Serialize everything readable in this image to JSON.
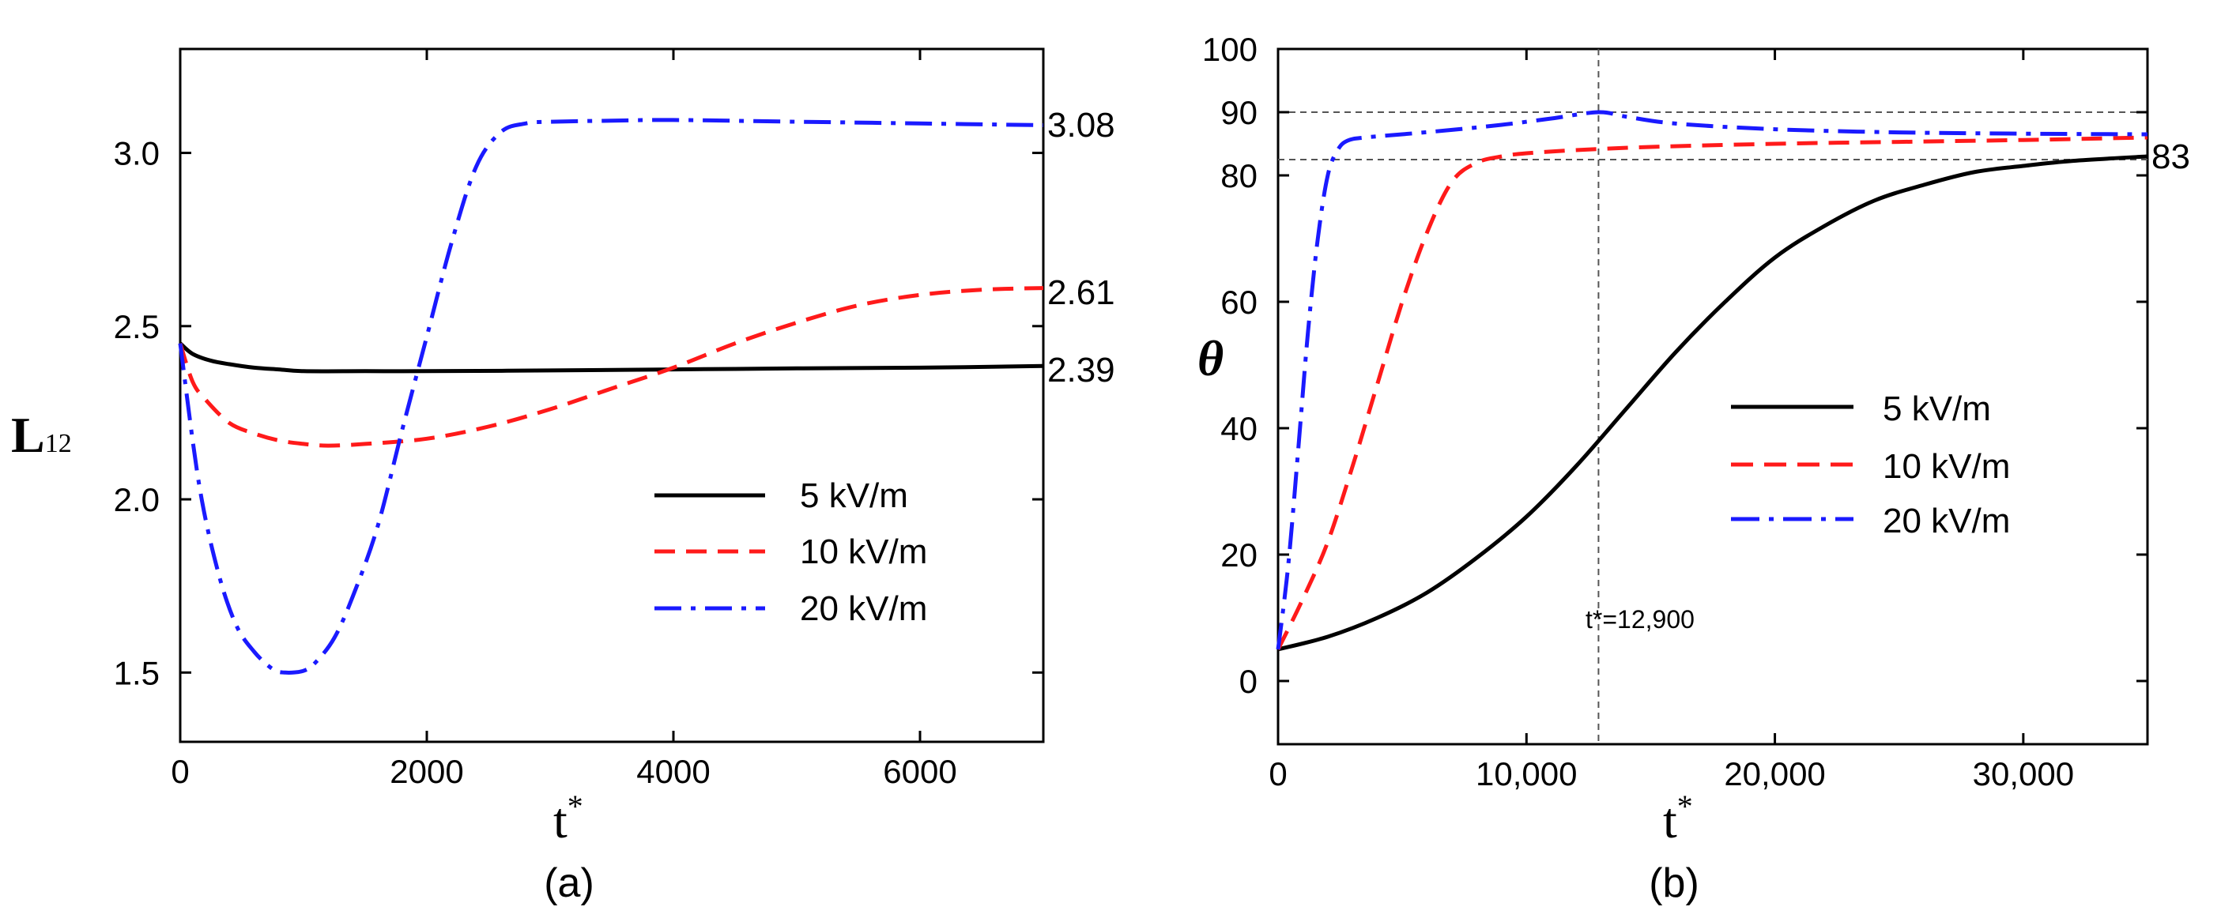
{
  "chart_data": [
    {
      "type": "line",
      "panel_label": "(a)",
      "xlabel": "t",
      "xlabel_sup": "*",
      "ylabel": "L",
      "ylabel_sub": "12",
      "xlim": [
        0,
        7000
      ],
      "ylim": [
        1.3,
        3.3
      ],
      "xticks": [
        0,
        2000,
        4000,
        6000
      ],
      "xtick_labels": [
        "0",
        "2000",
        "4000",
        "6000"
      ],
      "yticks": [
        1.5,
        2.0,
        2.5,
        3.0
      ],
      "ytick_labels": [
        "1.5",
        "2.0",
        "2.5",
        "3.0"
      ],
      "legend_position": "lower-right",
      "series": [
        {
          "name": "5 kV/m",
          "color": "#000000",
          "style": "solid",
          "x": [
            0,
            100,
            250,
            400,
            600,
            800,
            1000,
            1500,
            2000,
            3000,
            4000,
            5000,
            6000,
            7000
          ],
          "y": [
            2.45,
            2.42,
            2.4,
            2.39,
            2.38,
            2.375,
            2.37,
            2.37,
            2.37,
            2.372,
            2.375,
            2.378,
            2.38,
            2.385
          ],
          "end_label": "2.39"
        },
        {
          "name": "10 kV/m",
          "color": "#ff1a1a",
          "style": "dashed",
          "x": [
            0,
            100,
            200,
            400,
            600,
            800,
            1000,
            1200,
            1500,
            2000,
            2500,
            3000,
            3500,
            4000,
            4500,
            5000,
            5500,
            6000,
            6500,
            7000
          ],
          "y": [
            2.45,
            2.34,
            2.29,
            2.22,
            2.19,
            2.17,
            2.16,
            2.155,
            2.16,
            2.175,
            2.21,
            2.26,
            2.32,
            2.38,
            2.45,
            2.51,
            2.56,
            2.59,
            2.605,
            2.61
          ],
          "end_label": "2.61"
        },
        {
          "name": "20 kV/m",
          "color": "#1a1aff",
          "style": "dashdot",
          "x": [
            0,
            150,
            300,
            450,
            600,
            750,
            850,
            1000,
            1100,
            1250,
            1400,
            1600,
            1800,
            2000,
            2200,
            2400,
            2600,
            2800,
            3000,
            3500,
            4000,
            5000,
            6000,
            7000
          ],
          "y": [
            2.45,
            2.05,
            1.8,
            1.64,
            1.56,
            1.51,
            1.5,
            1.505,
            1.53,
            1.6,
            1.72,
            1.92,
            2.2,
            2.47,
            2.74,
            2.96,
            3.06,
            3.085,
            3.09,
            3.093,
            3.095,
            3.09,
            3.085,
            3.08
          ],
          "end_label": "3.08"
        }
      ]
    },
    {
      "type": "line",
      "panel_label": "(b)",
      "xlabel": "t",
      "xlabel_sup": "*",
      "ylabel": "θ",
      "xlim": [
        0,
        35000
      ],
      "ylim": [
        -10,
        100
      ],
      "xticks": [
        0,
        10000,
        20000,
        30000
      ],
      "xtick_labels": [
        "0",
        "10,000",
        "20,000",
        "30,000"
      ],
      "yticks": [
        0,
        20,
        40,
        60,
        80,
        90,
        100
      ],
      "ytick_labels": [
        "0",
        "20",
        "40",
        "60",
        "80",
        "90",
        "100"
      ],
      "legend_position": "right",
      "reference_lines": {
        "horizontal": [
          90,
          82.5
        ],
        "vertical": [
          12900
        ]
      },
      "annotation": "t*=12,900",
      "series": [
        {
          "name": "5 kV/m",
          "color": "#000000",
          "style": "solid",
          "x": [
            0,
            2000,
            4000,
            6000,
            8000,
            10000,
            12000,
            14000,
            16000,
            18000,
            20000,
            22000,
            24000,
            26000,
            28000,
            30000,
            32000,
            35000
          ],
          "y": [
            5,
            7,
            10,
            14,
            19.5,
            26,
            34,
            43,
            52,
            60,
            67,
            72,
            76,
            78.5,
            80.5,
            81.5,
            82.3,
            83
          ],
          "end_label": "83"
        },
        {
          "name": "10 kV/m",
          "color": "#ff1a1a",
          "style": "dashed",
          "x": [
            0,
            1000,
            2000,
            3000,
            4000,
            5000,
            6000,
            7000,
            8000,
            9000,
            10000,
            12000,
            15000,
            20000,
            25000,
            30000,
            35000
          ],
          "y": [
            5,
            13,
            22,
            34,
            47,
            60,
            71,
            79,
            82,
            83,
            83.5,
            84,
            84.5,
            85,
            85.3,
            85.6,
            86
          ]
        },
        {
          "name": "20 kV/m",
          "color": "#1a1aff",
          "style": "dashdot",
          "x": [
            0,
            400,
            800,
            1200,
            1600,
            2000,
            2400,
            2800,
            3500,
            5000,
            7000,
            9000,
            11000,
            12900,
            14000,
            16000,
            20000,
            25000,
            30000,
            35000
          ],
          "y": [
            5,
            18,
            36,
            55,
            70,
            80,
            84,
            85.5,
            86,
            86.5,
            87.2,
            88,
            89,
            90,
            89.3,
            88.2,
            87.3,
            86.8,
            86.6,
            86.5
          ]
        }
      ]
    }
  ]
}
